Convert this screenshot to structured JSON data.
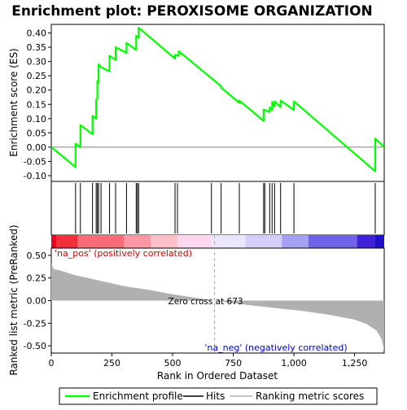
{
  "chart_data": {
    "type": "line",
    "title": "Enrichment plot: PEROXISOME ORGANIZATION",
    "panels": {
      "enrichment": {
        "ylabel": "Enrichment score (ES)",
        "ylim": [
          -0.12,
          0.43
        ],
        "yticks": [
          -0.1,
          -0.05,
          0.0,
          0.05,
          0.1,
          0.15,
          0.2,
          0.25,
          0.3,
          0.35,
          0.4
        ],
        "ytick_labels": [
          "-0.10",
          "-0.05",
          "0.00",
          "0.05",
          "0.10",
          "0.15",
          "0.20",
          "0.25",
          "0.30",
          "0.35",
          "0.40"
        ],
        "series": [
          {
            "name": "Enrichment profile",
            "color": "#00ff00",
            "x": [
              0,
              100,
              100,
              120,
              120,
              170,
              170,
              185,
              185,
              190,
              190,
              195,
              195,
              205,
              205,
              240,
              240,
              265,
              265,
              310,
              310,
              350,
              350,
              360,
              360,
              510,
              510,
              525,
              525,
              700,
              700,
              775,
              775,
              875,
              875,
              900,
              900,
              910,
              910,
              920,
              920,
              945,
              945,
              1000,
              1000,
              1335,
              1335,
              1372
            ],
            "y": [
              0.0,
              -0.07,
              0.012,
              0.0,
              0.077,
              0.045,
              0.11,
              0.1,
              0.165,
              0.17,
              0.232,
              0.225,
              0.29,
              0.28,
              0.28,
              0.265,
              0.32,
              0.305,
              0.35,
              0.33,
              0.365,
              0.34,
              0.39,
              0.383,
              0.418,
              0.31,
              0.323,
              0.32,
              0.336,
              0.213,
              0.208,
              0.155,
              0.163,
              0.092,
              0.132,
              0.123,
              0.14,
              0.13,
              0.158,
              0.142,
              0.16,
              0.14,
              0.163,
              0.13,
              0.16,
              -0.085,
              0.03,
              0.0
            ]
          }
        ]
      },
      "hits": {
        "name": "Hits",
        "positions": [
          100,
          120,
          170,
          185,
          190,
          195,
          205,
          240,
          265,
          310,
          350,
          355,
          360,
          510,
          520,
          660,
          700,
          775,
          875,
          880,
          900,
          910,
          920,
          945,
          1000,
          1335
        ]
      },
      "ranked_metric": {
        "ylabel": "Ranked list metric (PreRanked)",
        "ylim": [
          -0.58,
          0.58
        ],
        "yticks": [
          -0.5,
          -0.25,
          0.0,
          0.25,
          0.5
        ],
        "ytick_labels": [
          "-0.50",
          "-0.25",
          "0.00",
          "0.25",
          "0.50"
        ],
        "series": [
          {
            "name": "Ranking metric scores",
            "color": "#b0b0b0",
            "x": [
              0,
              10,
              40,
              100,
              200,
              300,
              400,
              500,
              600,
              673,
              750,
              850,
              950,
              1050,
              1150,
              1250,
              1300,
              1340,
              1360,
              1372
            ],
            "y": [
              0.41,
              0.35,
              0.33,
              0.28,
              0.22,
              0.16,
              0.12,
              0.07,
              0.03,
              0.0,
              -0.03,
              -0.06,
              -0.09,
              -0.12,
              -0.16,
              -0.21,
              -0.26,
              -0.33,
              -0.42,
              -0.55
            ]
          }
        ],
        "annotations": [
          {
            "text": "'na_pos' (positively correlated)",
            "color": "#cc0000"
          },
          {
            "text": "Zero cross at 673",
            "x": 673,
            "color": "#000000"
          },
          {
            "text": "'na_neg' (negatively correlated)",
            "color": "#0000cc"
          }
        ],
        "heatmap_bar": [
          {
            "start": 0,
            "end": 20,
            "color": "#e8001e"
          },
          {
            "start": 20,
            "end": 110,
            "color": "#f0303a"
          },
          {
            "start": 110,
            "end": 300,
            "color": "#f86c78"
          },
          {
            "start": 300,
            "end": 410,
            "color": "#fb97a2"
          },
          {
            "start": 410,
            "end": 520,
            "color": "#fdc0c8"
          },
          {
            "start": 520,
            "end": 660,
            "color": "#ffd7ef"
          },
          {
            "start": 660,
            "end": 800,
            "color": "#ebe6fa"
          },
          {
            "start": 800,
            "end": 950,
            "color": "#d3cffa"
          },
          {
            "start": 950,
            "end": 1060,
            "color": "#a49ff2"
          },
          {
            "start": 1060,
            "end": 1260,
            "color": "#6f62e6"
          },
          {
            "start": 1260,
            "end": 1335,
            "color": "#3d22d6"
          },
          {
            "start": 1335,
            "end": 1372,
            "color": "#1e10c8"
          }
        ]
      }
    },
    "x_axis": {
      "xlabel": "Rank in Ordered Dataset",
      "xlim": [
        0,
        1372
      ],
      "xticks": [
        0,
        250,
        500,
        750,
        1000,
        1250
      ],
      "xtick_labels": [
        "0",
        "250",
        "500",
        "750",
        "1,000",
        "1,250"
      ]
    },
    "legend": {
      "placement": "bottom",
      "entries": [
        {
          "label": "Enrichment profile",
          "color": "#00ff00"
        },
        {
          "label": "Hits",
          "color": "#000000"
        },
        {
          "label": "Ranking metric scores",
          "color": "#b0b0b0"
        }
      ]
    }
  }
}
